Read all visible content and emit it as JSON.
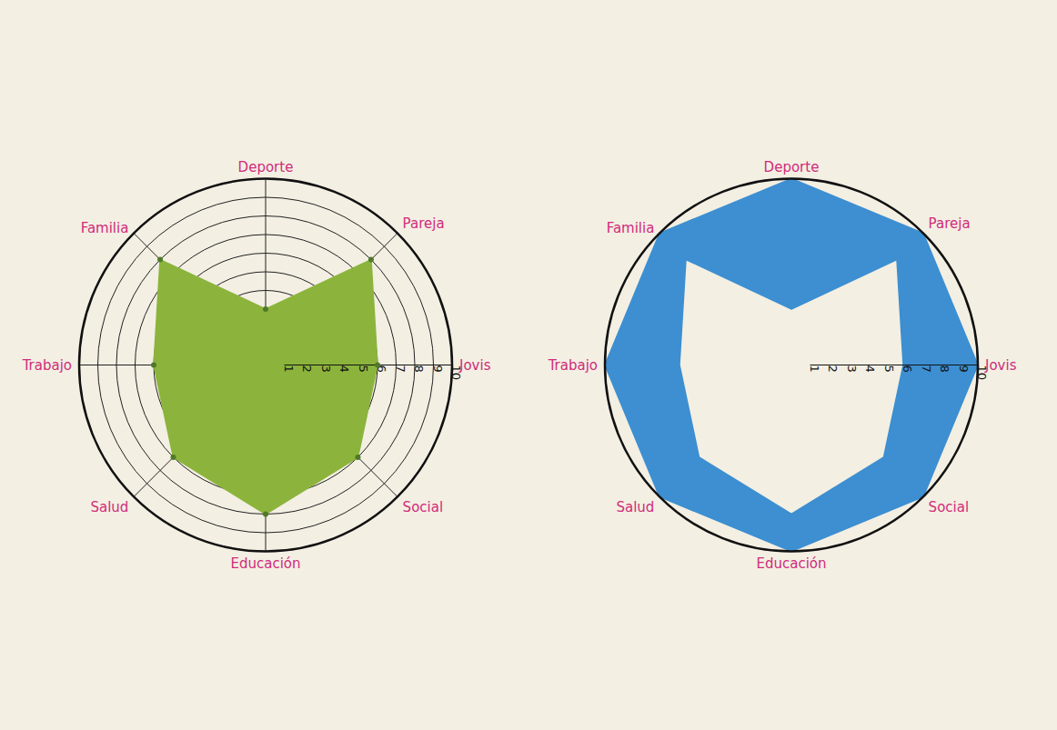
{
  "chart_data": [
    {
      "type": "radar",
      "categories": [
        "Deporte",
        "Pareja",
        "Jovis",
        "Social",
        "Educación",
        "Salud",
        "Trabajo",
        "Familia"
      ],
      "ylim": [
        0,
        10
      ],
      "yticks": [
        1,
        2,
        3,
        4,
        5,
        6,
        7,
        8,
        9,
        10
      ],
      "grid": true,
      "series": [
        {
          "color": "#8cb43c",
          "marker": "circle",
          "values": [
            3,
            8,
            6,
            7,
            8,
            7,
            6,
            8
          ]
        }
      ]
    },
    {
      "type": "radar",
      "categories": [
        "Deporte",
        "Pareja",
        "Jovis",
        "Social",
        "Educación",
        "Salud",
        "Trabajo",
        "Familia"
      ],
      "ylim": [
        0,
        10
      ],
      "yticks": [
        1,
        2,
        3,
        4,
        5,
        6,
        7,
        8,
        9,
        10
      ],
      "grid": true,
      "series": [
        {
          "color": "#3d8fd1",
          "values": [
            10,
            10,
            10,
            10,
            10,
            10,
            10,
            10
          ]
        },
        {
          "color": "#f3efe3",
          "values": [
            3,
            8,
            6,
            7,
            8,
            7,
            6,
            8
          ]
        }
      ]
    }
  ]
}
